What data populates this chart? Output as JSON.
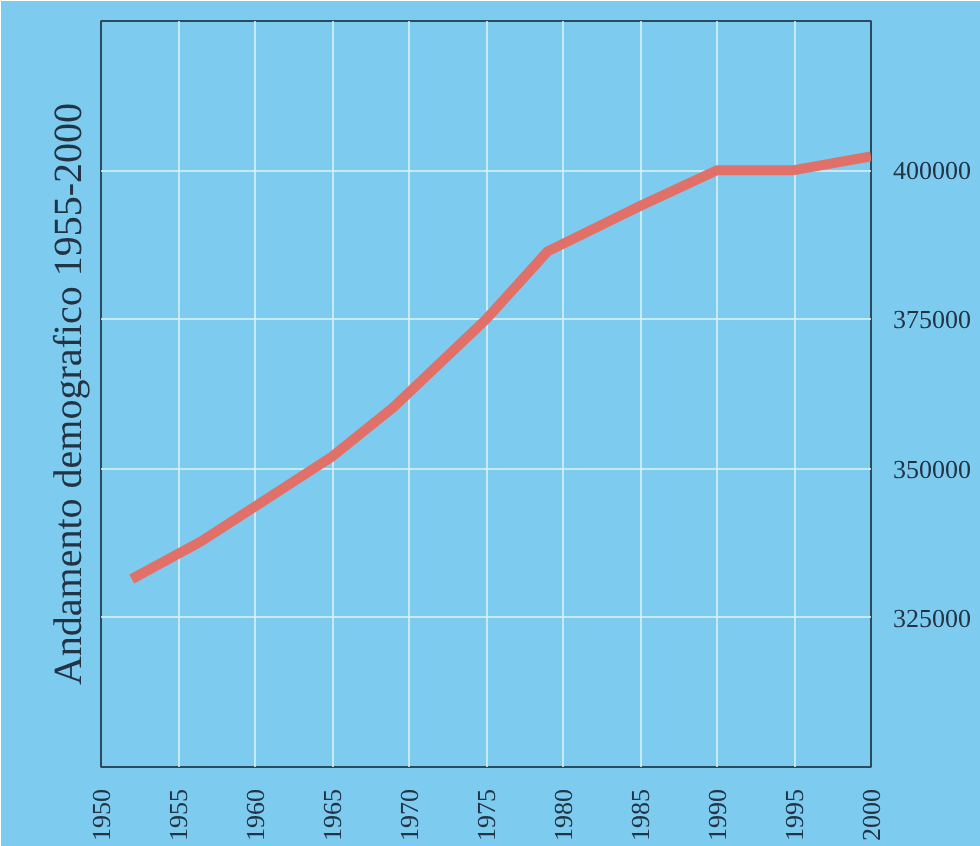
{
  "chart_data": {
    "type": "line",
    "ylabel": "Andamento demografico 1955-2000",
    "x": [
      1952,
      1956.5,
      1965,
      1969,
      1975,
      1979,
      1985,
      1990,
      1995,
      2000
    ],
    "series": [
      {
        "color": "#e07068",
        "values": [
          331500,
          337800,
          352000,
          360300,
          375000,
          386400,
          394000,
          400000,
          400000,
          402300
        ]
      }
    ],
    "xlim": [
      1950,
      2000
    ],
    "xticks": [
      1950,
      1955,
      1960,
      1965,
      1970,
      1975,
      1980,
      1985,
      1990,
      1995,
      2000
    ],
    "ylim": [
      300000,
      425000
    ],
    "yticks": [
      325000,
      350000,
      375000,
      400000
    ],
    "grid": true,
    "marker": "none",
    "line_style": "solid"
  }
}
